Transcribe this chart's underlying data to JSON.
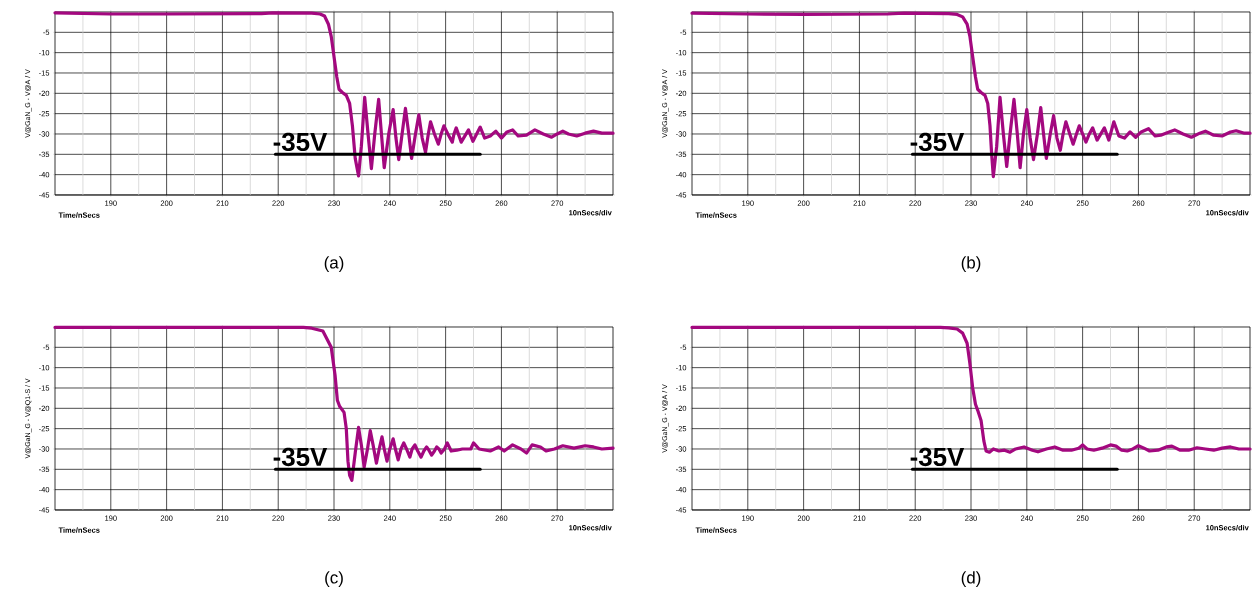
{
  "chart_data": [
    {
      "type": "line",
      "title": "(a)",
      "xlabel": "Time/nSecs",
      "ylabel": "V@GaN_G - V@A / V",
      "annotations": [
        "-35V",
        "10nSecs/div"
      ],
      "xlim": [
        180,
        280
      ],
      "ylim": [
        -45,
        0
      ],
      "grid": true,
      "marker": "none",
      "line_style": "solid",
      "xticks": [
        {
          "value": 185,
          "label": null
        },
        190,
        {
          "value": 195,
          "label": null
        },
        200,
        {
          "value": 205,
          "label": null
        },
        210,
        {
          "value": 215,
          "label": null
        },
        220,
        {
          "value": 225,
          "label": null
        },
        230,
        {
          "value": 235,
          "label": null
        },
        240,
        {
          "value": 245,
          "label": null
        },
        250,
        {
          "value": 255,
          "label": null
        },
        260,
        {
          "value": 265,
          "label": null
        },
        270,
        {
          "value": 275,
          "label": null
        }
      ],
      "yticks": [
        -45,
        -40,
        -35,
        -30,
        -25,
        -20,
        -15,
        -10,
        -5
      ],
      "series": [
        {
          "color": "#a3087f",
          "x": [
            180,
            190,
            200,
            217,
            219,
            226,
            227.5,
            228.3,
            229,
            229.5,
            230,
            230.5,
            230.9,
            231.5,
            232.2,
            232.8,
            233.3,
            233.8,
            234.4,
            234.9,
            235.5,
            236.1,
            236.7,
            237.3,
            238,
            238.5,
            239,
            239.8,
            240.6,
            241.1,
            241.6,
            242.2,
            242.8,
            243.4,
            243.9,
            244.6,
            245.2,
            245.8,
            246.4,
            246.9,
            247.3,
            248,
            248.7,
            249.2,
            249.7,
            250.4,
            251.2,
            251.5,
            251.9,
            252.8,
            254.1,
            254.9,
            256.2,
            257,
            258,
            259,
            260,
            261,
            262,
            263,
            264.5,
            266,
            267.5,
            269,
            270,
            271,
            272,
            273.5,
            275,
            276.5,
            278,
            280
          ],
          "values": [
            -0.2,
            -0.5,
            -0.5,
            -0.4,
            -0.2,
            -0.3,
            -0.5,
            -1,
            -3,
            -6,
            -11,
            -16,
            -19,
            -19.8,
            -20.5,
            -22.5,
            -28,
            -36,
            -40.3,
            -33,
            -21,
            -30,
            -38.5,
            -30,
            -21.5,
            -30,
            -38.3,
            -30,
            -24,
            -31,
            -36.3,
            -30,
            -23.7,
            -30,
            -36,
            -30,
            -25.3,
            -31,
            -34.5,
            -30,
            -27,
            -30,
            -32.5,
            -30,
            -28,
            -30,
            -32,
            -30,
            -28.5,
            -32,
            -29,
            -31.8,
            -28.3,
            -31,
            -30.5,
            -29.3,
            -31,
            -29.5,
            -29,
            -30.5,
            -30.3,
            -29,
            -30,
            -30.8,
            -30,
            -29.3,
            -30,
            -30.5,
            -29.8,
            -29.3,
            -29.8,
            -29.8
          ]
        },
        {
          "type": "line",
          "color": "#000000",
          "x": [
            219.5,
            256.2
          ],
          "values": [
            -35,
            -35
          ]
        }
      ]
    },
    {
      "type": "line",
      "title": "(b)",
      "xlabel": "Time/nSecs",
      "ylabel": "V@GaN_G - V@A / V",
      "annotations": [
        "-35V",
        "10nSecs/div"
      ],
      "xlim": [
        180,
        280
      ],
      "ylim": [
        -45,
        0
      ],
      "grid": true,
      "marker": "none",
      "line_style": "solid",
      "xticks": [
        {
          "value": 185,
          "label": null
        },
        190,
        {
          "value": 195,
          "label": null
        },
        200,
        {
          "value": 205,
          "label": null
        },
        210,
        {
          "value": 215,
          "label": null
        },
        220,
        {
          "value": 225,
          "label": null
        },
        230,
        {
          "value": 235,
          "label": null
        },
        240,
        {
          "value": 245,
          "label": null
        },
        250,
        {
          "value": 255,
          "label": null
        },
        260,
        {
          "value": 265,
          "label": null
        },
        270,
        {
          "value": 275,
          "label": null
        }
      ],
      "yticks": [
        -45,
        -40,
        -35,
        -30,
        -25,
        -20,
        -15,
        -10,
        -5
      ],
      "series": [
        {
          "color": "#a3087f",
          "x": [
            180,
            190,
            200,
            215,
            218,
            226,
            227.5,
            228.5,
            229.3,
            229.8,
            230.3,
            230.8,
            231.2,
            231.8,
            232.5,
            233,
            233.4,
            233.7,
            234,
            234.6,
            235.2,
            235.8,
            236.4,
            237,
            237.7,
            238.3,
            238.8,
            239.4,
            240,
            240.6,
            241.2,
            241.9,
            242.5,
            243,
            243.5,
            244.2,
            244.8,
            245.4,
            246,
            246.5,
            247,
            247.7,
            248.3,
            248.9,
            249.4,
            250,
            250.6,
            251.2,
            251.8,
            252.6,
            253.9,
            254.7,
            255.6,
            256.5,
            257.5,
            258.5,
            259.5,
            260.5,
            261.8,
            263,
            264,
            265.5,
            266.5,
            268,
            269.5,
            271,
            272,
            273.5,
            275,
            276.5,
            277.5,
            279,
            280
          ],
          "values": [
            -0.3,
            -0.5,
            -0.6,
            -0.5,
            -0.3,
            -0.4,
            -0.6,
            -1.2,
            -3,
            -6,
            -11,
            -16,
            -19,
            -19.8,
            -20.5,
            -22.5,
            -28,
            -35,
            -40.5,
            -33,
            -21,
            -30,
            -38,
            -30,
            -21.5,
            -30,
            -38.3,
            -30,
            -24,
            -31,
            -36.3,
            -30,
            -23.5,
            -30,
            -36,
            -30,
            -25.5,
            -31,
            -34,
            -30,
            -27,
            -30,
            -32.5,
            -30,
            -28,
            -30,
            -32,
            -30,
            -28.5,
            -31.5,
            -28.5,
            -31.5,
            -27,
            -30.5,
            -31,
            -29.5,
            -30.8,
            -29.5,
            -28.7,
            -30.5,
            -30.3,
            -29.5,
            -29,
            -30,
            -30.8,
            -29.8,
            -29.3,
            -30.3,
            -30.5,
            -29.5,
            -29.2,
            -29.8,
            -29.8
          ]
        },
        {
          "type": "line",
          "color": "#000000",
          "x": [
            219.5,
            256.2
          ],
          "values": [
            -35,
            -35
          ]
        }
      ]
    },
    {
      "type": "line",
      "title": "(c)",
      "xlabel": "Time/nSecs",
      "ylabel": "V@GaN_G - V@Q1-S / V",
      "annotations": [
        "-35V",
        "10nSecs/div"
      ],
      "xlim": [
        180,
        280
      ],
      "ylim": [
        -45,
        0
      ],
      "grid": true,
      "marker": "none",
      "line_style": "solid",
      "xticks": [
        {
          "value": 185,
          "label": null
        },
        190,
        {
          "value": 195,
          "label": null
        },
        200,
        {
          "value": 205,
          "label": null
        },
        210,
        {
          "value": 215,
          "label": null
        },
        220,
        {
          "value": 225,
          "label": null
        },
        230,
        {
          "value": 235,
          "label": null
        },
        240,
        {
          "value": 245,
          "label": null
        },
        250,
        {
          "value": 255,
          "label": null
        },
        260,
        {
          "value": 265,
          "label": null
        },
        270,
        {
          "value": 275,
          "label": null
        }
      ],
      "yticks": [
        -45,
        -40,
        -35,
        -30,
        -25,
        -20,
        -15,
        -10,
        -5
      ],
      "series": [
        {
          "color": "#a3087f",
          "x": [
            180,
            200,
            224.5,
            226,
            228,
            229.5,
            230.2,
            230.6,
            231,
            231.8,
            232.2,
            232.5,
            232.8,
            233.2,
            233.8,
            234.4,
            234.9,
            235.4,
            236,
            236.5,
            237,
            237.6,
            238.1,
            238.6,
            239,
            239.5,
            240,
            240.6,
            241,
            241.5,
            242,
            242.5,
            243,
            243.6,
            244,
            244.5,
            245,
            245.6,
            246.1,
            246.6,
            247,
            247.5,
            248,
            248.4,
            248.8,
            249.2,
            249.8,
            250.3,
            251,
            252,
            253,
            254.5,
            255,
            256,
            258,
            259.5,
            260.5,
            262,
            263.5,
            264.5,
            265.5,
            267,
            268,
            269.5,
            271,
            273,
            275,
            276.5,
            278,
            280
          ],
          "values": [
            -0.1,
            -0.1,
            -0.1,
            -0.3,
            -1,
            -5,
            -12,
            -18,
            -19.5,
            -21,
            -25,
            -33,
            -36.5,
            -37.7,
            -31,
            -24.7,
            -29,
            -34.5,
            -30,
            -25.5,
            -29,
            -33.5,
            -30,
            -27,
            -30,
            -33,
            -30,
            -27.5,
            -30,
            -32.7,
            -30,
            -28.5,
            -30,
            -32,
            -30,
            -29,
            -30.5,
            -32,
            -30.5,
            -29.5,
            -30.3,
            -31.5,
            -30.5,
            -29.5,
            -30,
            -31,
            -30,
            -28.5,
            -30.5,
            -30.3,
            -30,
            -30,
            -28.5,
            -30,
            -30.5,
            -29.5,
            -30.5,
            -29,
            -30,
            -31,
            -29,
            -29.5,
            -30.5,
            -30,
            -29.2,
            -29.8,
            -29.2,
            -29.5,
            -30,
            -29.8
          ]
        },
        {
          "type": "line",
          "color": "#000000",
          "x": [
            219.5,
            256.2
          ],
          "values": [
            -35,
            -35
          ]
        }
      ]
    },
    {
      "type": "line",
      "title": "(d)",
      "xlabel": "Time/nSecs",
      "ylabel": "V@GaN_G - V@A / V",
      "annotations": [
        "-35V",
        "10nSecs/div"
      ],
      "xlim": [
        180,
        280
      ],
      "ylim": [
        -45,
        0
      ],
      "grid": true,
      "marker": "none",
      "line_style": "solid",
      "xticks": [
        {
          "value": 185,
          "label": null
        },
        190,
        {
          "value": 195,
          "label": null
        },
        200,
        {
          "value": 205,
          "label": null
        },
        210,
        {
          "value": 215,
          "label": null
        },
        220,
        {
          "value": 225,
          "label": null
        },
        230,
        {
          "value": 235,
          "label": null
        },
        240,
        {
          "value": 245,
          "label": null
        },
        250,
        {
          "value": 255,
          "label": null
        },
        260,
        {
          "value": 265,
          "label": null
        },
        270,
        {
          "value": 275,
          "label": null
        }
      ],
      "yticks": [
        -45,
        -40,
        -35,
        -30,
        -25,
        -20,
        -15,
        -10,
        -5
      ],
      "series": [
        {
          "color": "#a3087f",
          "x": [
            180,
            200,
            224.5,
            226,
            227.5,
            228.5,
            229.3,
            229.8,
            230.3,
            230.8,
            231.2,
            231.8,
            232.3,
            232.7,
            233.3,
            234,
            235,
            236,
            237,
            238,
            239.5,
            241,
            242,
            243.5,
            245,
            246.5,
            248,
            249.3,
            250,
            250.8,
            252,
            253.5,
            255,
            256,
            257,
            258,
            259,
            260,
            261,
            262,
            263.5,
            265,
            266,
            267.5,
            269,
            270.5,
            272,
            273.5,
            275,
            276.5,
            278,
            280
          ],
          "values": [
            -0.1,
            -0.1,
            -0.1,
            -0.2,
            -0.5,
            -1.5,
            -4,
            -9,
            -15,
            -19,
            -20.5,
            -23,
            -28,
            -30.5,
            -30.8,
            -30,
            -30.5,
            -30.3,
            -30.8,
            -30,
            -29.5,
            -30.3,
            -30.7,
            -30,
            -29.5,
            -30.3,
            -30.3,
            -29.8,
            -29,
            -30,
            -30.3,
            -29.8,
            -29,
            -29.3,
            -30.3,
            -30.5,
            -30,
            -29.2,
            -29.8,
            -30.5,
            -30.3,
            -29.5,
            -29.3,
            -30.3,
            -30.3,
            -29.7,
            -30,
            -30.3,
            -29.8,
            -29.5,
            -30,
            -30
          ]
        },
        {
          "type": "line",
          "color": "#000000",
          "x": [
            219.5,
            256.2
          ],
          "values": [
            -35,
            -35
          ]
        }
      ]
    }
  ]
}
